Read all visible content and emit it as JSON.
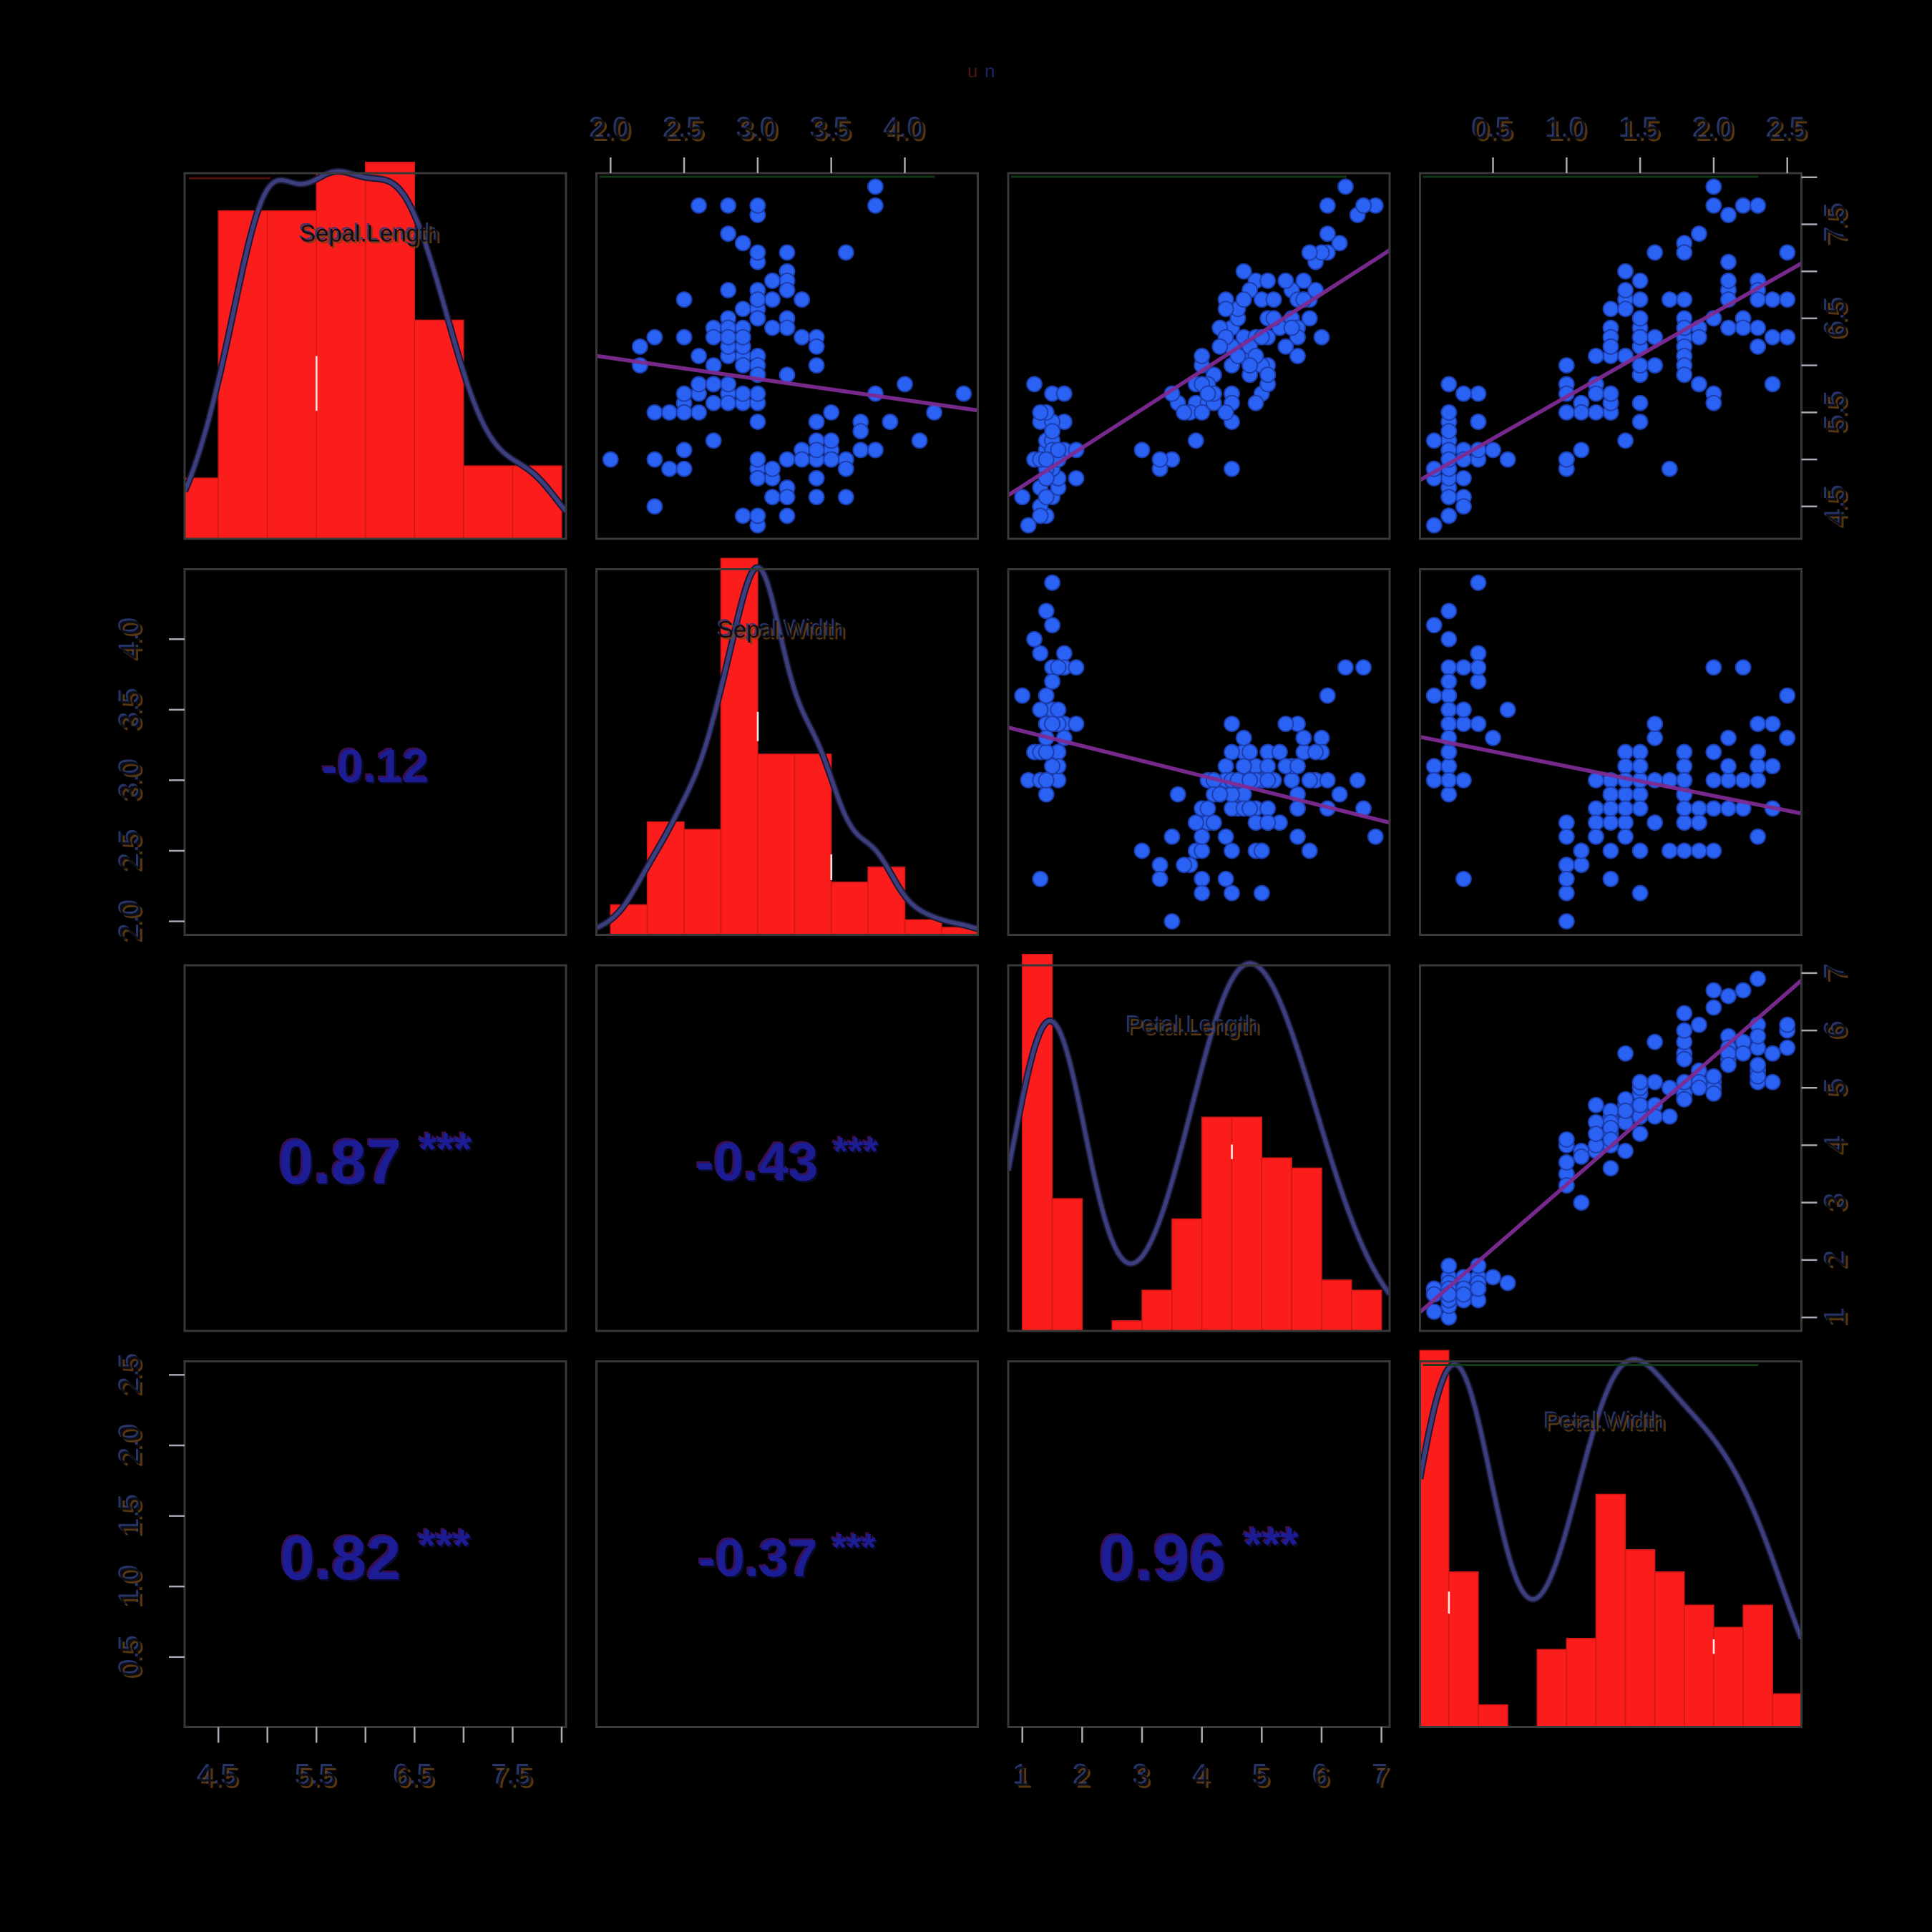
{
  "title": {
    "glyphs": [
      {
        "char": "u",
        "color": "#4a1612"
      },
      {
        "char": "n",
        "color": "#1b2660"
      }
    ]
  },
  "colors": {
    "background": "#000000",
    "panel_border": "#383838",
    "tick": "#a9aab6",
    "tick_label_main": "#0d0d15",
    "emboss_cool": "#2b3a72",
    "emboss_warm": "#6b4416",
    "bar_fill": "#fb1c1c",
    "bar_stroke": "#cf1515",
    "density_outer": "#191938",
    "density_inner": "#3c3e7e",
    "point_fill": "#2a62f3",
    "point_stroke": "#1c3dae",
    "fit_line": "#7d2b93",
    "cor_text": "#1c1c94",
    "cor_fringe_cool": "#6a1d8e",
    "cor_fringe_dark": "#0a0a30",
    "artifact_green": "#123f18",
    "artifact_red": "#5c1010",
    "sliver_white": "#ffffff"
  },
  "chart_data": {
    "type": "scatterplot-matrix",
    "variables": [
      "Sepal.Length",
      "Sepal.Width",
      "Petal.Length",
      "Petal.Width"
    ],
    "diagonal_labels": [
      "Sepal.Length",
      "Sepal.Width",
      "Petal.Length",
      "Petal.Width"
    ],
    "observations": {
      "Sepal.Length": [
        5.1,
        4.9,
        4.7,
        4.6,
        5,
        5.4,
        4.6,
        5,
        4.4,
        4.9,
        5.4,
        4.8,
        4.8,
        4.3,
        5.8,
        5.7,
        5.4,
        5.1,
        5.7,
        5.1,
        5.4,
        5.1,
        4.6,
        5.1,
        4.8,
        5,
        5,
        5.2,
        5.2,
        4.7,
        4.8,
        5.4,
        5.2,
        5.5,
        4.9,
        5,
        5.5,
        4.9,
        4.4,
        5.1,
        5,
        4.5,
        4.4,
        5,
        5.1,
        4.8,
        5.1,
        4.6,
        5.3,
        5,
        7,
        6.4,
        6.9,
        5.5,
        6.5,
        5.7,
        6.3,
        4.9,
        6.6,
        5.2,
        5,
        5.9,
        6,
        6.1,
        5.6,
        6.7,
        5.6,
        5.8,
        6.2,
        5.6,
        5.9,
        6.1,
        6.3,
        6.1,
        6.4,
        6.6,
        6.8,
        6.7,
        6,
        5.7,
        5.5,
        5.5,
        5.8,
        6,
        5.4,
        6,
        6.7,
        6.3,
        5.6,
        5.5,
        5.5,
        6.1,
        5.8,
        5,
        5.6,
        5.7,
        5.7,
        6.2,
        5.1,
        5.7,
        6.3,
        5.8,
        7.1,
        6.3,
        6.5,
        7.6,
        4.9,
        7.3,
        6.7,
        7.2,
        6.5,
        6.4,
        6.8,
        5.7,
        5.8,
        6.4,
        6.5,
        7.7,
        7.7,
        6,
        6.9,
        5.6,
        7.7,
        6.3,
        6.7,
        7.2,
        6.2,
        6.1,
        6.4,
        7.2,
        7.4,
        7.9,
        6.4,
        6.3,
        6.1,
        7.7,
        6.3,
        6.4,
        6,
        6.9,
        6.7,
        6.9,
        5.8,
        6.8,
        6.7,
        6.7,
        6.3,
        6.5,
        6.2,
        5.9
      ],
      "Sepal.Width": [
        3.5,
        3,
        3.2,
        3.1,
        3.6,
        3.9,
        3.4,
        3.4,
        2.9,
        3.1,
        3.7,
        3.4,
        3,
        3,
        4,
        4.4,
        3.9,
        3.5,
        3.8,
        3.8,
        3.4,
        3.7,
        3.6,
        3.3,
        3.4,
        3,
        3.4,
        3.5,
        3.4,
        3.2,
        3.1,
        3.4,
        4.1,
        4.2,
        3.1,
        3.2,
        3.5,
        3.6,
        3,
        3.4,
        3.5,
        2.3,
        3.2,
        3.5,
        3.8,
        3,
        3.8,
        3.2,
        3.7,
        3.3,
        3.2,
        3.2,
        3.1,
        2.3,
        2.8,
        2.8,
        3.3,
        2.4,
        2.9,
        2.7,
        2,
        3,
        2.2,
        2.9,
        2.9,
        3.1,
        3,
        2.7,
        2.2,
        2.5,
        3.2,
        2.8,
        2.5,
        2.8,
        2.9,
        3,
        2.8,
        3,
        2.9,
        2.6,
        2.4,
        2.4,
        2.7,
        2.7,
        3,
        3.4,
        3.1,
        2.3,
        3,
        2.5,
        2.6,
        3,
        2.6,
        2.3,
        2.7,
        3,
        2.9,
        2.9,
        2.5,
        2.8,
        3.3,
        2.7,
        3,
        2.9,
        3,
        3,
        2.5,
        2.9,
        2.5,
        3.6,
        3.2,
        2.7,
        3,
        2.5,
        2.8,
        3.2,
        3,
        3.8,
        2.6,
        2.2,
        3.2,
        2.8,
        2.8,
        2.7,
        3.3,
        3.2,
        2.8,
        3,
        2.8,
        3,
        2.8,
        3.8,
        2.8,
        2.8,
        2.6,
        3,
        3.4,
        3.1,
        3,
        3.1,
        3.1,
        3.1,
        2.7,
        3.2,
        3.3,
        3,
        2.5,
        3,
        3.4,
        3
      ],
      "Petal.Length": [
        1.4,
        1.4,
        1.3,
        1.5,
        1.4,
        1.7,
        1.4,
        1.5,
        1.4,
        1.5,
        1.5,
        1.6,
        1.4,
        1.1,
        1.2,
        1.5,
        1.3,
        1.4,
        1.7,
        1.5,
        1.7,
        1.5,
        1,
        1.7,
        1.9,
        1.6,
        1.6,
        1.5,
        1.4,
        1.6,
        1.6,
        1.5,
        1.5,
        1.4,
        1.5,
        1.2,
        1.3,
        1.4,
        1.3,
        1.5,
        1.3,
        1.3,
        1.3,
        1.6,
        1.9,
        1.4,
        1.6,
        1.4,
        1.5,
        1.4,
        4.7,
        4.5,
        4.9,
        4,
        4.6,
        4.5,
        4.7,
        3.3,
        4.6,
        3.9,
        3.5,
        4.2,
        4,
        4.7,
        3.6,
        4.4,
        4.5,
        4.1,
        4.5,
        3.9,
        4.8,
        4,
        4.9,
        4.7,
        4.3,
        4.4,
        4.8,
        5,
        4.5,
        3.5,
        3.8,
        3.7,
        3.9,
        5.1,
        4.5,
        4.5,
        4.7,
        4.4,
        4.1,
        4,
        4.4,
        4.6,
        4,
        3.3,
        4.2,
        4.2,
        4.2,
        4.3,
        3,
        4.1,
        6,
        5.1,
        5.9,
        5.6,
        5.8,
        6.6,
        4.5,
        6.3,
        5.8,
        6.1,
        5.1,
        5.3,
        5.5,
        5,
        5.1,
        5.3,
        5.5,
        6.7,
        6.9,
        5,
        5.7,
        4.9,
        6.7,
        4.9,
        5.7,
        6,
        4.8,
        4.9,
        5.6,
        5.8,
        6.1,
        6.4,
        5.6,
        5.1,
        5.6,
        6.1,
        5.6,
        5.5,
        4.8,
        5.4,
        5.6,
        5.1,
        5.1,
        5.9,
        5.7,
        5.2,
        5,
        5.2,
        5.4,
        5.1
      ],
      "Petal.Width": [
        0.2,
        0.2,
        0.2,
        0.2,
        0.2,
        0.4,
        0.3,
        0.2,
        0.2,
        0.1,
        0.2,
        0.2,
        0.1,
        0.1,
        0.2,
        0.4,
        0.4,
        0.3,
        0.3,
        0.3,
        0.2,
        0.4,
        0.2,
        0.5,
        0.2,
        0.2,
        0.4,
        0.2,
        0.2,
        0.2,
        0.2,
        0.4,
        0.1,
        0.2,
        0.2,
        0.2,
        0.2,
        0.1,
        0.2,
        0.2,
        0.3,
        0.3,
        0.2,
        0.6,
        0.4,
        0.3,
        0.2,
        0.2,
        0.2,
        0.2,
        1.4,
        1.5,
        1.5,
        1.3,
        1.5,
        1.3,
        1.6,
        1,
        1.3,
        1.4,
        1,
        1.5,
        1,
        1.4,
        1.3,
        1.4,
        1.5,
        1,
        1.5,
        1.1,
        1.8,
        1.3,
        1.5,
        1.2,
        1.3,
        1.4,
        1.4,
        1.7,
        1.5,
        1,
        1.1,
        1,
        1.2,
        1.6,
        1.5,
        1.6,
        1.5,
        1.3,
        1.3,
        1.3,
        1.2,
        1.4,
        1.2,
        1,
        1.3,
        1.2,
        1.3,
        1.3,
        1.1,
        1.3,
        2.5,
        1.9,
        2.1,
        1.8,
        2.2,
        2.1,
        1.7,
        1.8,
        1.8,
        2.5,
        2,
        1.9,
        2.1,
        2,
        2.4,
        2.3,
        1.8,
        2.2,
        2.3,
        1.5,
        2.3,
        2,
        2,
        1.8,
        2.1,
        1.8,
        1.8,
        1.8,
        2.1,
        1.6,
        1.9,
        2,
        2.2,
        1.5,
        1.4,
        2.3,
        2.4,
        1.8,
        1.8,
        2.1,
        2.4,
        2.3,
        1.9,
        2.3,
        2.5,
        2.3,
        1.9,
        2,
        2.3,
        1.8
      ]
    },
    "histograms": {
      "Sepal.Length": {
        "start": 4.0,
        "binwidth": 0.5,
        "counts": [
          5,
          27,
          27,
          30,
          31,
          18,
          6,
          6
        ]
      },
      "Sepal.Width": {
        "start": 2.0,
        "binwidth": 0.25,
        "counts": [
          4,
          15,
          14,
          50,
          24,
          24,
          7,
          9,
          2,
          1
        ]
      },
      "Petal.Length": {
        "start": 1.0,
        "binwidth": 0.5,
        "counts": [
          37,
          13,
          0,
          1,
          4,
          11,
          21,
          21,
          17,
          16,
          5,
          4
        ]
      },
      "Petal.Width": {
        "start": 0.0,
        "binwidth": 0.2,
        "counts": [
          34,
          14,
          2,
          0,
          7,
          8,
          21,
          16,
          14,
          11,
          9,
          11,
          3
        ]
      }
    },
    "correlations": [
      {
        "row": 1,
        "col": 0,
        "r": -0.12,
        "text": "-0.12",
        "stars": ""
      },
      {
        "row": 2,
        "col": 0,
        "r": 0.87,
        "text": "0.87",
        "stars": "***"
      },
      {
        "row": 2,
        "col": 1,
        "r": -0.43,
        "text": "-0.43",
        "stars": "***"
      },
      {
        "row": 3,
        "col": 0,
        "r": 0.82,
        "text": "0.82",
        "stars": "***"
      },
      {
        "row": 3,
        "col": 1,
        "r": -0.37,
        "text": "-0.37",
        "stars": "***"
      },
      {
        "row": 3,
        "col": 2,
        "r": 0.96,
        "text": "0.96",
        "stars": "***"
      }
    ],
    "axes": [
      {
        "side": "top",
        "col": 1,
        "ticks": [
          2.0,
          2.5,
          3.0,
          3.5,
          4.0
        ],
        "labels": [
          "2.0",
          "2.5",
          "3.0",
          "3.5",
          "4.0"
        ]
      },
      {
        "side": "top",
        "col": 3,
        "ticks": [
          0.5,
          1.0,
          1.5,
          2.0,
          2.5
        ],
        "labels": [
          "0.5",
          "1.0",
          "1.5",
          "2.0",
          "2.5"
        ]
      },
      {
        "side": "right",
        "row": 0,
        "ticks": [
          4.5,
          5.0,
          5.5,
          6.0,
          6.5,
          7.0,
          7.5,
          8.0
        ],
        "labels": [
          "4.5",
          "",
          "5.5",
          "",
          "6.5",
          "",
          "7.5",
          ""
        ]
      },
      {
        "side": "right",
        "row": 2,
        "ticks": [
          1,
          2,
          3,
          4,
          5,
          6,
          7
        ],
        "labels": [
          "1",
          "2",
          "3",
          "4",
          "5",
          "6",
          "7"
        ]
      },
      {
        "side": "left",
        "row": 1,
        "ticks": [
          2.0,
          2.5,
          3.0,
          3.5,
          4.0
        ],
        "labels": [
          "2.0",
          "2.5",
          "3.0",
          "3.5",
          "4.0"
        ]
      },
      {
        "side": "left",
        "row": 3,
        "ticks": [
          0.5,
          1.0,
          1.5,
          2.0,
          2.5
        ],
        "labels": [
          "0.5",
          "1.0",
          "1.5",
          "2.0",
          "2.5"
        ]
      },
      {
        "side": "bottom",
        "col": 0,
        "ticks": [
          4.5,
          5.0,
          5.5,
          6.0,
          6.5,
          7.0,
          7.5,
          8.0
        ],
        "labels": [
          "4.5",
          "",
          "5.5",
          "",
          "6.5",
          "",
          "7.5",
          ""
        ]
      },
      {
        "side": "bottom",
        "col": 2,
        "ticks": [
          1,
          2,
          3,
          4,
          5,
          6,
          7
        ],
        "labels": [
          "1",
          "2",
          "3",
          "4",
          "5",
          "6",
          "7"
        ]
      }
    ],
    "artifacts": {
      "hist_slivers": [
        {
          "var": "Sepal.Length",
          "boundary": 5.5,
          "frac0": 0.5,
          "frac1": 0.65
        },
        {
          "var": "Sepal.Width",
          "boundary": 3.0,
          "frac0": 0.39,
          "frac1": 0.47
        },
        {
          "var": "Sepal.Width",
          "boundary": 3.5,
          "frac0": 0.78,
          "frac1": 0.85
        },
        {
          "var": "Petal.Length",
          "boundary": 4.5,
          "frac0": 0.49,
          "frac1": 0.53
        },
        {
          "var": "Petal.Width",
          "boundary": 0.2,
          "frac0": 0.63,
          "frac1": 0.69
        },
        {
          "var": "Petal.Width",
          "boundary": 2.0,
          "frac0": 0.76,
          "frac1": 0.8
        }
      ],
      "top_edge_lines": [
        {
          "row": 0,
          "col": 1,
          "kind": "green"
        },
        {
          "row": 0,
          "col": 2,
          "kind": "green"
        },
        {
          "row": 0,
          "col": 3,
          "kind": "green"
        },
        {
          "row": 3,
          "col": 3,
          "kind": "green"
        },
        {
          "row": 0,
          "col": 0,
          "kind": "red"
        }
      ]
    }
  }
}
